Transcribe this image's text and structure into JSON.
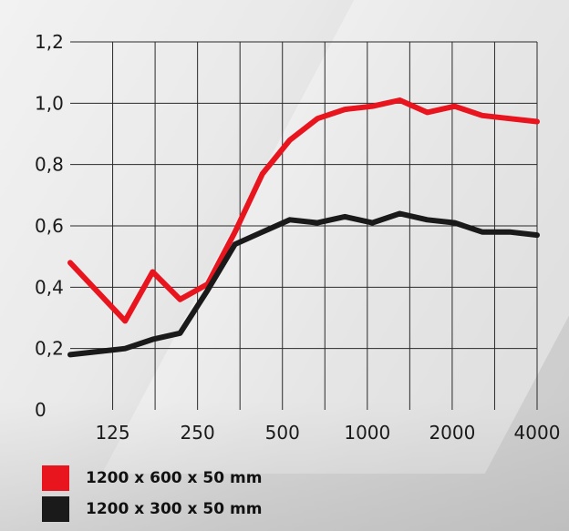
{
  "chart_data": {
    "type": "line",
    "title": "",
    "xlabel": "",
    "ylabel": "",
    "x_categories": [
      "",
      "125",
      "",
      "250",
      "",
      "500",
      "",
      "1000",
      "",
      "2000",
      "",
      "4000"
    ],
    "x_labels_shown": [
      "125",
      "250",
      "500",
      "1000",
      "2000",
      "4000"
    ],
    "ylim": [
      0,
      1.2
    ],
    "y_ticks": [
      "0",
      "0,2",
      "0,4",
      "0,6",
      "0,8",
      "1,0",
      "1,2"
    ],
    "grid": true,
    "legend_position": "bottom-left",
    "series": [
      {
        "name": "1200 x 600 x 50 mm",
        "color": "#e8141e",
        "points": [
          {
            "x": 0,
            "y": 0.48
          },
          {
            "x": 1,
            "y": 0.29
          },
          {
            "x": 1.5,
            "y": 0.45
          },
          {
            "x": 2,
            "y": 0.36
          },
          {
            "x": 2.5,
            "y": 0.41
          },
          {
            "x": 3,
            "y": 0.58
          },
          {
            "x": 3.5,
            "y": 0.77
          },
          {
            "x": 4,
            "y": 0.88
          },
          {
            "x": 4.5,
            "y": 0.95
          },
          {
            "x": 5,
            "y": 0.98
          },
          {
            "x": 5.5,
            "y": 0.99
          },
          {
            "x": 6,
            "y": 1.01
          },
          {
            "x": 6.5,
            "y": 0.97
          },
          {
            "x": 7,
            "y": 0.99
          },
          {
            "x": 7.5,
            "y": 0.96
          },
          {
            "x": 8,
            "y": 0.95
          },
          {
            "x": 8.5,
            "y": 0.94
          }
        ]
      },
      {
        "name": "1200 x 300 x 50 mm",
        "color": "#1a1a1a",
        "points": [
          {
            "x": 0,
            "y": 0.18
          },
          {
            "x": 1,
            "y": 0.2
          },
          {
            "x": 1.5,
            "y": 0.23
          },
          {
            "x": 2,
            "y": 0.25
          },
          {
            "x": 2.5,
            "y": 0.39
          },
          {
            "x": 3,
            "y": 0.54
          },
          {
            "x": 3.5,
            "y": 0.58
          },
          {
            "x": 4,
            "y": 0.62
          },
          {
            "x": 4.5,
            "y": 0.61
          },
          {
            "x": 5,
            "y": 0.63
          },
          {
            "x": 5.5,
            "y": 0.61
          },
          {
            "x": 6,
            "y": 0.64
          },
          {
            "x": 6.5,
            "y": 0.62
          },
          {
            "x": 7,
            "y": 0.61
          },
          {
            "x": 7.5,
            "y": 0.58
          },
          {
            "x": 8,
            "y": 0.58
          },
          {
            "x": 8.5,
            "y": 0.57
          }
        ]
      }
    ]
  }
}
